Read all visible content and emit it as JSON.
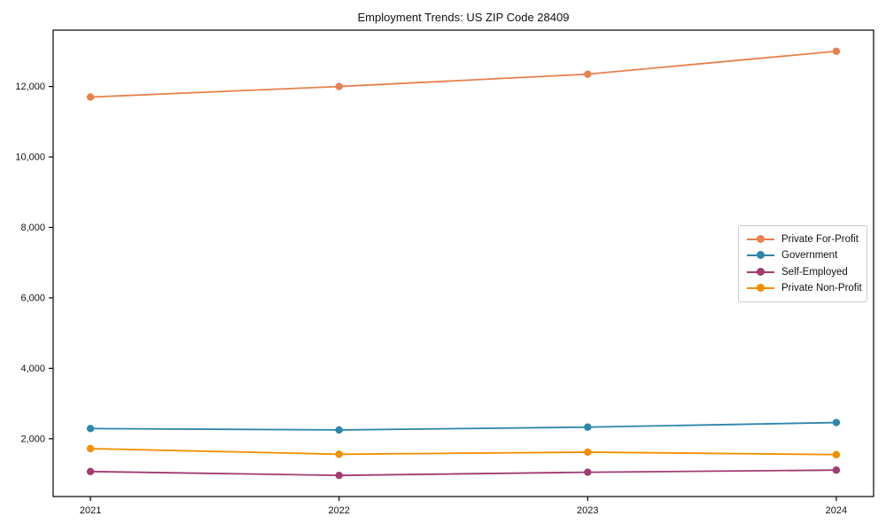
{
  "figure": {
    "background": "#ffffff",
    "frame_color": "#000000",
    "tick_color": "#000000"
  },
  "chart_data": {
    "type": "line",
    "title": "Employment Trends: US ZIP Code 28409",
    "xlabel": "",
    "ylabel": "",
    "x": [
      2021,
      2022,
      2023,
      2024
    ],
    "xtick_labels": [
      "2021",
      "2022",
      "2023",
      "2024"
    ],
    "yticks": [
      2000,
      4000,
      6000,
      8000,
      10000,
      12000
    ],
    "ytick_labels": [
      "2,000",
      "4,000",
      "6,000",
      "8,000",
      "10,000",
      "12,000"
    ],
    "xlim": [
      2020.85,
      2024.15
    ],
    "ylim": [
      360,
      13600
    ],
    "grid": false,
    "legend_position": "center-right",
    "series": [
      {
        "name": "Private For-Profit",
        "color": "#E8804D",
        "values": [
          11700,
          12000,
          12350,
          13000
        ]
      },
      {
        "name": "Government",
        "color": "#2E86AB",
        "values": [
          2290,
          2250,
          2330,
          2460
        ]
      },
      {
        "name": "Self-Employed",
        "color": "#A23B72",
        "values": [
          1070,
          960,
          1050,
          1110
        ]
      },
      {
        "name": "Private Non-Profit",
        "color": "#F18F01",
        "values": [
          1720,
          1560,
          1620,
          1550
        ]
      }
    ]
  }
}
